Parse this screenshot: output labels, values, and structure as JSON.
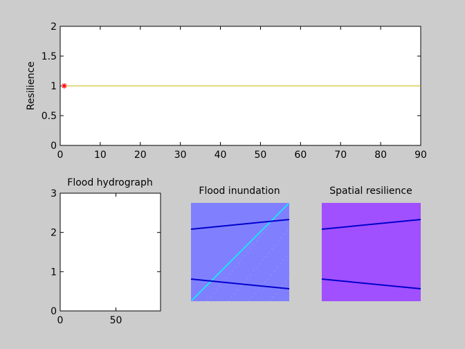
{
  "colors": {
    "figure_bg": "#cccccc",
    "axes_bg": "#ffffff",
    "resilience_line": "#c8b400",
    "start_marker": "#ff0000",
    "inundation_bg": "#8080ff",
    "inundation_diagonal": "#00ffff",
    "road_lines": "#0000cc",
    "spatial_bg": "#a050ff"
  },
  "chart_data": [
    {
      "type": "line",
      "ylabel": "Resilience",
      "xlim": [
        0,
        90
      ],
      "ylim": [
        0,
        2
      ],
      "xticks": [
        "0",
        "10",
        "20",
        "30",
        "40",
        "50",
        "60",
        "70",
        "80",
        "90"
      ],
      "yticks": [
        "0",
        "0.5",
        "1",
        "1.5",
        "2"
      ],
      "series": [
        {
          "x": [
            1,
            90
          ],
          "values": [
            1,
            1
          ]
        }
      ],
      "markers": [
        {
          "x": 1,
          "y": 1,
          "symbol": "*"
        }
      ],
      "grid": false
    },
    {
      "type": "line",
      "title": "Flood hydrograph",
      "xlim": [
        0,
        90
      ],
      "ylim": [
        0,
        3
      ],
      "xticks": [
        "0",
        "50"
      ],
      "yticks": [
        "0",
        "1",
        "2",
        "3"
      ],
      "series": [],
      "grid": false
    },
    {
      "type": "heatmap",
      "title": "Flood inundation"
    },
    {
      "type": "heatmap",
      "title": "Spatial resilience"
    }
  ]
}
